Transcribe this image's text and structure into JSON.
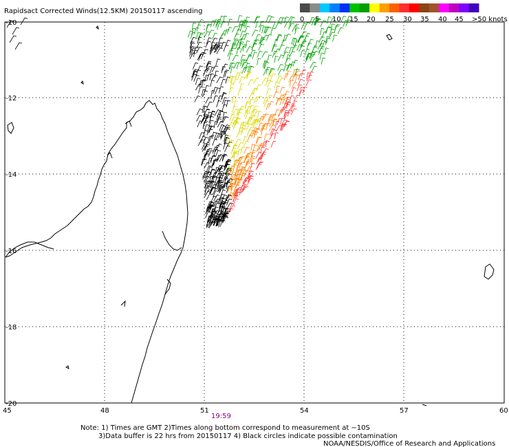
{
  "title": "Rapidsact Corrected Winds(12.5KM) 20150117 ascending",
  "legend": {
    "labels": [
      "0",
      "5",
      "10",
      "15",
      "20",
      "25",
      "30",
      "35",
      "40",
      "45",
      ">50 knots"
    ],
    "colors": [
      "#4a4a4a",
      "#8c8c8c",
      "#00c8ff",
      "#0080ff",
      "#0030ff",
      "#00c000",
      "#00a000",
      "#ffff00",
      "#ffa000",
      "#ff6000",
      "#ff3030",
      "#ff0000",
      "#8b4513",
      "#a0522d",
      "#ff00ff",
      "#c000c0",
      "#8000ff",
      "#4000c0"
    ]
  },
  "axes": {
    "lon_labels": [
      "45",
      "48",
      "51",
      "54",
      "57",
      "60"
    ],
    "lat_labels": [
      "-10",
      "-12",
      "-14",
      "-16",
      "-18",
      "-20"
    ]
  },
  "time_label": "19:59",
  "notes": {
    "line1": "Note: 1) Times are GMT 2)Times along bottom correspond to measurement at −10S",
    "line2": "3)Data buffer is 22 hrs from 20150117 4) Black circles indicate possible contamination",
    "line3": "NOAA/NESDIS/Office of Research and Applications"
  }
}
